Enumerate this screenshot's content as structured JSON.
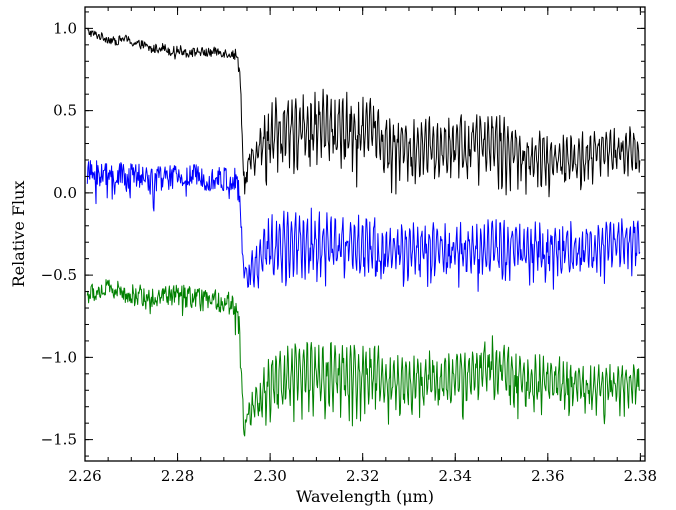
{
  "chart_data": {
    "type": "line",
    "title": "",
    "xlabel": "Wavelength (μm)",
    "ylabel": "Relative Flux",
    "xlim": [
      2.26,
      2.381
    ],
    "ylim": [
      -1.63,
      1.13
    ],
    "grid": false,
    "legend": "none",
    "x_ticks": [
      {
        "value": 2.26,
        "label": "2.26"
      },
      {
        "value": 2.28,
        "label": "2.28"
      },
      {
        "value": 2.3,
        "label": "2.30"
      },
      {
        "value": 2.32,
        "label": "2.32"
      },
      {
        "value": 2.34,
        "label": "2.34"
      },
      {
        "value": 2.36,
        "label": "2.36"
      },
      {
        "value": 2.38,
        "label": "2.38"
      }
    ],
    "y_ticks": [
      {
        "value": 1.0,
        "label": "1.0"
      },
      {
        "value": 0.5,
        "label": "0.5"
      },
      {
        "value": 0.0,
        "label": "0.0"
      },
      {
        "value": -0.5,
        "label": "−0.5"
      },
      {
        "value": -1.0,
        "label": "−1.0"
      },
      {
        "value": -1.5,
        "label": "−1.5"
      }
    ],
    "x_minor_step": 0.005,
    "y_minor_step": 0.1,
    "series": [
      {
        "color": "#000000",
        "points": [
          [
            2.2605,
            0.98
          ],
          [
            2.2625,
            0.96
          ],
          [
            2.2645,
            0.94
          ],
          [
            2.2665,
            0.92
          ],
          [
            2.2685,
            0.94
          ],
          [
            2.2705,
            0.91
          ],
          [
            2.2725,
            0.9
          ],
          [
            2.2745,
            0.87
          ],
          [
            2.2765,
            0.89
          ],
          [
            2.2785,
            0.86
          ],
          [
            2.2805,
            0.87
          ],
          [
            2.2825,
            0.85
          ],
          [
            2.2845,
            0.86
          ],
          [
            2.2865,
            0.85
          ],
          [
            2.2885,
            0.86
          ],
          [
            2.2905,
            0.85
          ],
          [
            2.2925,
            0.84
          ],
          [
            2.2935,
            0.76
          ],
          [
            2.294,
            0.3
          ],
          [
            2.2945,
            0.04
          ],
          [
            2.2955,
            0.15
          ],
          [
            2.2975,
            0.3
          ],
          [
            2.3,
            0.4
          ],
          [
            2.305,
            0.45
          ],
          [
            2.31,
            0.45
          ],
          [
            2.315,
            0.44
          ],
          [
            2.32,
            0.43
          ],
          [
            2.323,
            0.43
          ],
          [
            2.324,
            0.33
          ],
          [
            2.328,
            0.32
          ],
          [
            2.332,
            0.3
          ],
          [
            2.338,
            0.32
          ],
          [
            2.345,
            0.36
          ],
          [
            2.35,
            0.32
          ],
          [
            2.355,
            0.26
          ],
          [
            2.36,
            0.25
          ],
          [
            2.365,
            0.25
          ],
          [
            2.37,
            0.27
          ],
          [
            2.375,
            0.3
          ],
          [
            2.38,
            0.28
          ]
        ],
        "noise": [
          [
            2.26,
            0.025
          ],
          [
            2.292,
            0.03
          ],
          [
            2.295,
            0.08
          ],
          [
            2.3,
            0.26
          ],
          [
            2.323,
            0.28
          ],
          [
            2.324,
            0.22
          ],
          [
            2.35,
            0.26
          ],
          [
            2.355,
            0.19
          ],
          [
            2.38,
            0.17
          ]
        ]
      },
      {
        "color": "#0000ff",
        "points": [
          [
            2.2605,
            0.12
          ],
          [
            2.265,
            0.11
          ],
          [
            2.27,
            0.1
          ],
          [
            2.275,
            0.09
          ],
          [
            2.28,
            0.09
          ],
          [
            2.285,
            0.1
          ],
          [
            2.29,
            0.08
          ],
          [
            2.2925,
            0.07
          ],
          [
            2.2935,
            -0.05
          ],
          [
            2.294,
            -0.4
          ],
          [
            2.2945,
            -0.55
          ],
          [
            2.296,
            -0.42
          ],
          [
            2.3,
            -0.28
          ],
          [
            2.305,
            -0.25
          ],
          [
            2.31,
            -0.25
          ],
          [
            2.315,
            -0.27
          ],
          [
            2.32,
            -0.28
          ],
          [
            2.323,
            -0.28
          ],
          [
            2.324,
            -0.33
          ],
          [
            2.33,
            -0.32
          ],
          [
            2.34,
            -0.3
          ],
          [
            2.35,
            -0.28
          ],
          [
            2.36,
            -0.3
          ],
          [
            2.37,
            -0.31
          ],
          [
            2.38,
            -0.24
          ]
        ],
        "noise": [
          [
            2.26,
            0.08
          ],
          [
            2.292,
            0.08
          ],
          [
            2.295,
            0.1
          ],
          [
            2.3,
            0.22
          ],
          [
            2.323,
            0.24
          ],
          [
            2.324,
            0.2
          ],
          [
            2.35,
            0.22
          ],
          [
            2.38,
            0.18
          ]
        ]
      },
      {
        "color": "#008000",
        "points": [
          [
            2.2605,
            -0.62
          ],
          [
            2.265,
            -0.58
          ],
          [
            2.27,
            -0.62
          ],
          [
            2.275,
            -0.63
          ],
          [
            2.28,
            -0.62
          ],
          [
            2.285,
            -0.65
          ],
          [
            2.29,
            -0.66
          ],
          [
            2.2925,
            -0.68
          ],
          [
            2.2935,
            -0.85
          ],
          [
            2.294,
            -1.25
          ],
          [
            2.2945,
            -1.45
          ],
          [
            2.296,
            -1.3
          ],
          [
            2.3,
            -1.1
          ],
          [
            2.305,
            -1.05
          ],
          [
            2.31,
            -1.05
          ],
          [
            2.315,
            -1.05
          ],
          [
            2.32,
            -1.05
          ],
          [
            2.323,
            -1.05
          ],
          [
            2.324,
            -1.12
          ],
          [
            2.33,
            -1.1
          ],
          [
            2.34,
            -1.1
          ],
          [
            2.348,
            -1.0
          ],
          [
            2.355,
            -1.1
          ],
          [
            2.365,
            -1.12
          ],
          [
            2.375,
            -1.15
          ],
          [
            2.38,
            -1.12
          ]
        ],
        "noise": [
          [
            2.26,
            0.06
          ],
          [
            2.292,
            0.07
          ],
          [
            2.295,
            0.1
          ],
          [
            2.3,
            0.25
          ],
          [
            2.323,
            0.27
          ],
          [
            2.324,
            0.2
          ],
          [
            2.35,
            0.22
          ],
          [
            2.38,
            0.15
          ]
        ]
      }
    ]
  }
}
